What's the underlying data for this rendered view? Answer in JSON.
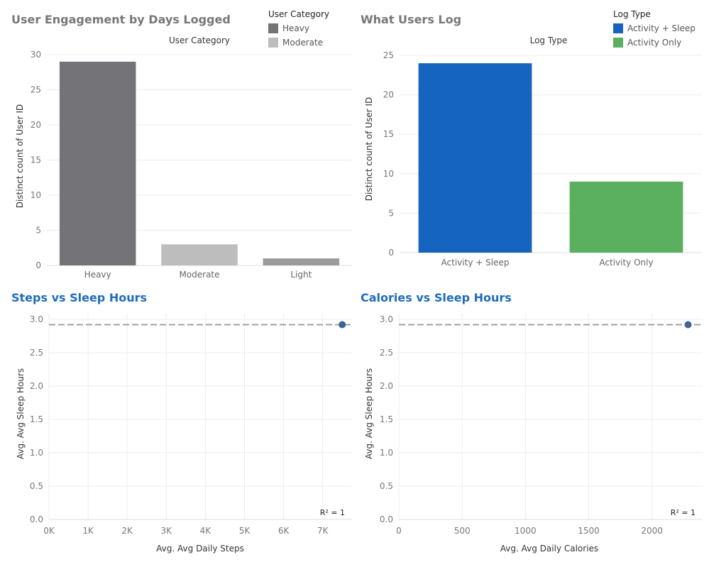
{
  "panels": {
    "engagement": {
      "title": "User Engagement by Days Logged",
      "title_color": "#777777"
    },
    "log": {
      "title": "What Users Log",
      "title_color": "#777777"
    },
    "steps": {
      "title": "Steps vs Sleep Hours",
      "title_color": "#1f6bbf"
    },
    "calories": {
      "title": "Calories vs Sleep Hours",
      "title_color": "#1f6bbf"
    }
  },
  "legends": {
    "user_category": {
      "title": "User Category",
      "items": [
        {
          "label": "Heavy",
          "color": "#737378"
        },
        {
          "label": "Moderate",
          "color": "#bdbdbd"
        }
      ]
    },
    "log_type": {
      "title": "Log Type",
      "items": [
        {
          "label": "Activity + Sleep",
          "color": "#1565c0"
        },
        {
          "label": "Activity Only",
          "color": "#5ab05e"
        }
      ]
    }
  },
  "chart_data": [
    {
      "type": "bar",
      "header": "User Category",
      "categories": [
        "Heavy",
        "Moderate",
        "Light"
      ],
      "values": [
        29,
        3,
        1
      ],
      "colors": [
        "#737378",
        "#bdbdbd",
        "#9b9b9b"
      ],
      "ylabel": "Distinct count of User ID",
      "ylim": [
        0,
        30
      ],
      "yticks": [
        0,
        5,
        10,
        15,
        20,
        25,
        30
      ],
      "grid": true
    },
    {
      "type": "bar",
      "header": "Log Type",
      "categories": [
        "Activity + Sleep",
        "Activity Only"
      ],
      "values": [
        24,
        9
      ],
      "colors": [
        "#1565c0",
        "#5ab05e"
      ],
      "ylabel": "Distinct count of User ID",
      "ylim": [
        0,
        25
      ],
      "yticks": [
        0,
        5,
        10,
        15,
        20,
        25
      ],
      "grid": true
    },
    {
      "type": "scatter",
      "xlabel": "Avg. Avg Daily Steps",
      "ylabel": "Avg. Avg Sleep Hours",
      "xlim": [
        0,
        7750
      ],
      "ylim": [
        0,
        3.0
      ],
      "xticks": [
        0,
        1000,
        2000,
        3000,
        4000,
        5000,
        6000,
        7000
      ],
      "xtick_labels": [
        "0K",
        "1K",
        "2K",
        "3K",
        "4K",
        "5K",
        "6K",
        "7K"
      ],
      "yticks": [
        0,
        0.5,
        1.0,
        1.5,
        2.0,
        2.5,
        3.0
      ],
      "ytick_labels": [
        "0.0",
        "0.5",
        "1.0",
        "1.5",
        "2.0",
        "2.5",
        "3.0"
      ],
      "points": [
        {
          "x": 7500,
          "y": 2.92
        }
      ],
      "trend_line": {
        "y": 2.92
      },
      "annotation": "R² = 1",
      "point_color": "#3d6496"
    },
    {
      "type": "scatter",
      "xlabel": "Avg. Avg Daily Calories",
      "ylabel": "Avg. Avg Sleep Hours",
      "xlim": [
        0,
        2400
      ],
      "ylim": [
        0,
        3.0
      ],
      "xticks": [
        0,
        500,
        1000,
        1500,
        2000
      ],
      "xtick_labels": [
        "0",
        "500",
        "1000",
        "1500",
        "2000"
      ],
      "yticks": [
        0,
        0.5,
        1.0,
        1.5,
        2.0,
        2.5,
        3.0
      ],
      "ytick_labels": [
        "0.0",
        "0.5",
        "1.0",
        "1.5",
        "2.0",
        "2.5",
        "3.0"
      ],
      "points": [
        {
          "x": 2285,
          "y": 2.92
        }
      ],
      "trend_line": {
        "y": 2.92
      },
      "annotation": "R² = 1",
      "point_color": "#3d6496"
    }
  ]
}
